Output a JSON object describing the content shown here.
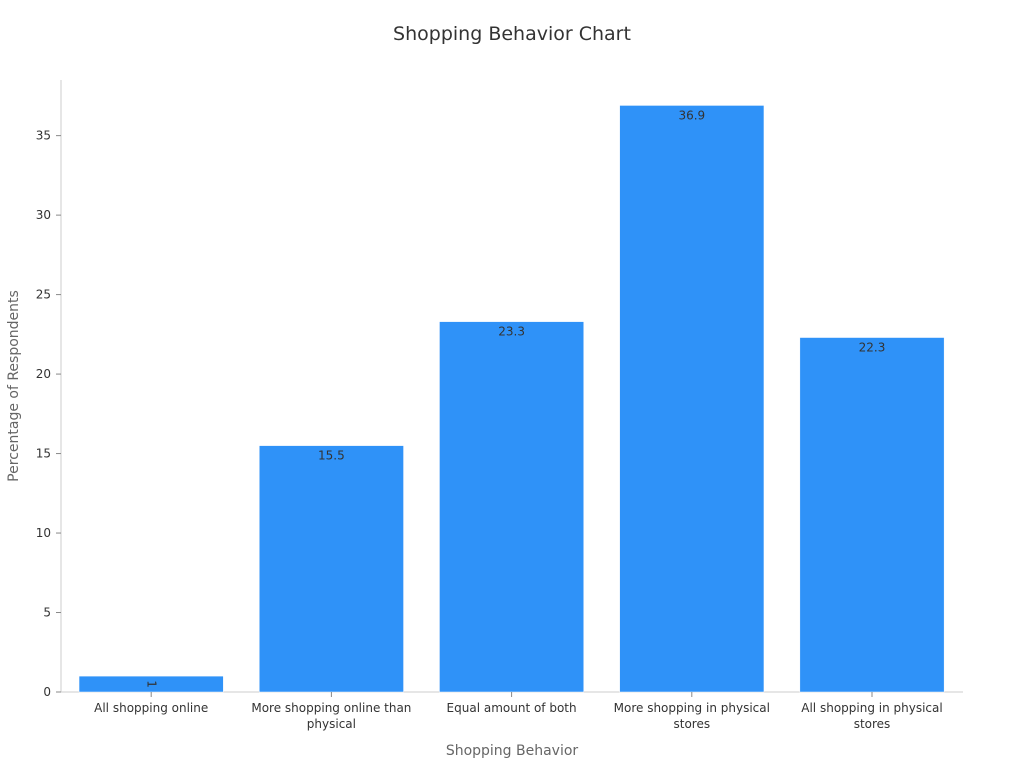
{
  "chart_data": {
    "type": "bar",
    "title": "Shopping Behavior Chart",
    "xlabel": "Shopping Behavior",
    "ylabel": "Percentage of Respondents",
    "categories": [
      [
        "All shopping online"
      ],
      [
        "More shopping online than",
        "physical"
      ],
      [
        "Equal amount of both"
      ],
      [
        "More shopping in physical",
        "stores"
      ],
      [
        "All shopping in physical",
        "stores"
      ]
    ],
    "values": [
      1,
      15.5,
      23.3,
      36.9,
      22.3
    ],
    "data_labels": [
      "1",
      "15.5",
      "23.3",
      "36.9",
      "22.3"
    ],
    "yticks": [
      0,
      5,
      10,
      15,
      20,
      25,
      30,
      35
    ],
    "ylim": [
      0,
      38.5
    ],
    "grid": false,
    "legend": "none",
    "bar_color": "#2f92f8"
  }
}
